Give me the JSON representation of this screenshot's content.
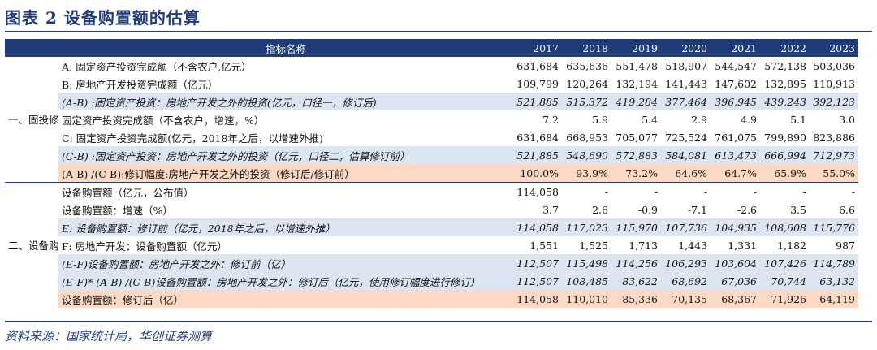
{
  "title": "图表 2   设备购置额的估算",
  "header": {
    "indicator": "指标名称",
    "years": [
      "2017",
      "2018",
      "2019",
      "2020",
      "2021",
      "2022",
      "2023"
    ]
  },
  "groups": [
    {
      "label": "一、固投修订幅度估算"
    },
    {
      "label": "二、设备购置投资额估算"
    }
  ],
  "rows": [
    {
      "label": "A: 固定资产投资完成额（不含农户,亿元）",
      "values": [
        "631,684",
        "635,636",
        "551,478",
        "518,907",
        "544,547",
        "572,138",
        "503,036"
      ],
      "style": "plain"
    },
    {
      "label": "B: 房地产开发投资完成额（亿元）",
      "values": [
        "109,799",
        "120,264",
        "132,194",
        "141,443",
        "147,602",
        "132,895",
        "110,913"
      ],
      "style": "plain"
    },
    {
      "label": "(A-B) :固定资产投资：房地产开发之外的投资(亿元，口径一，修订后)",
      "values": [
        "521,885",
        "515,372",
        "419,284",
        "377,464",
        "396,945",
        "439,243",
        "392,123"
      ],
      "style": "blue"
    },
    {
      "label": "固定资产投资完成额（不含农户，增速，%）",
      "values": [
        "7.2",
        "5.9",
        "5.4",
        "2.9",
        "4.9",
        "5.1",
        "3.0"
      ],
      "style": "plain"
    },
    {
      "label": "C: 固定资产投资完成额(亿元，2018年之后，以增速外推)",
      "values": [
        "631,684",
        "668,953",
        "705,077",
        "725,524",
        "761,075",
        "799,890",
        "823,886"
      ],
      "style": "plain"
    },
    {
      "label": "(C-B) :固定资产投资：房地产开发之外的投资（亿元，口径二，估算修订前）",
      "values": [
        "521,885",
        "548,690",
        "572,883",
        "584,081",
        "613,473",
        "666,994",
        "712,973"
      ],
      "style": "blue"
    },
    {
      "label": "(A-B) /(C-B):修订幅度:房地产开发之外的投资（修订后/修订前）",
      "values": [
        "100.0%",
        "93.9%",
        "73.2%",
        "64.6%",
        "64.7%",
        "65.9%",
        "55.0%"
      ],
      "style": "peach"
    },
    {
      "label": "设备购置额（亿元，公布值）",
      "values": [
        "114,058",
        "-",
        "-",
        "-",
        "-",
        "-",
        "-"
      ],
      "style": "plain"
    },
    {
      "label": "设备购置额：增速（%）",
      "values": [
        "3.7",
        "2.6",
        "-0.9",
        "-7.1",
        "-2.6",
        "3.5",
        "6.6"
      ],
      "style": "plain"
    },
    {
      "label": "E: 设备购置额：修订前（亿元，2018年之后，以增速外推）",
      "values": [
        "114,058",
        "117,023",
        "115,970",
        "107,736",
        "104,935",
        "108,608",
        "115,776"
      ],
      "style": "blue"
    },
    {
      "label": "F: 房地产开发：设备购置额（亿元）",
      "values": [
        "1,551",
        "1,525",
        "1,713",
        "1,443",
        "1,331",
        "1,182",
        "987"
      ],
      "style": "plain"
    },
    {
      "label": "(E-F)设备购置额：房地产开发之外：修订前（亿）",
      "values": [
        "112,507",
        "115,498",
        "114,256",
        "106,293",
        "103,604",
        "107,426",
        "114,789"
      ],
      "style": "blue"
    },
    {
      "label": "(E-F)* (A-B) /(C-B)设备购置额：房地产开发之外：修订后（亿元，使用修订幅度进行修订）",
      "values": [
        "112,507",
        "108,485",
        "83,622",
        "68,692",
        "67,036",
        "70,744",
        "63,132"
      ],
      "style": "blue"
    },
    {
      "label": "设备购置额：修订后（亿）",
      "values": [
        "114,058",
        "110,010",
        "85,336",
        "70,135",
        "68,367",
        "71,926",
        "64,119"
      ],
      "style": "peach"
    }
  ],
  "source": "资料来源：国家统计局，华创证券测算"
}
